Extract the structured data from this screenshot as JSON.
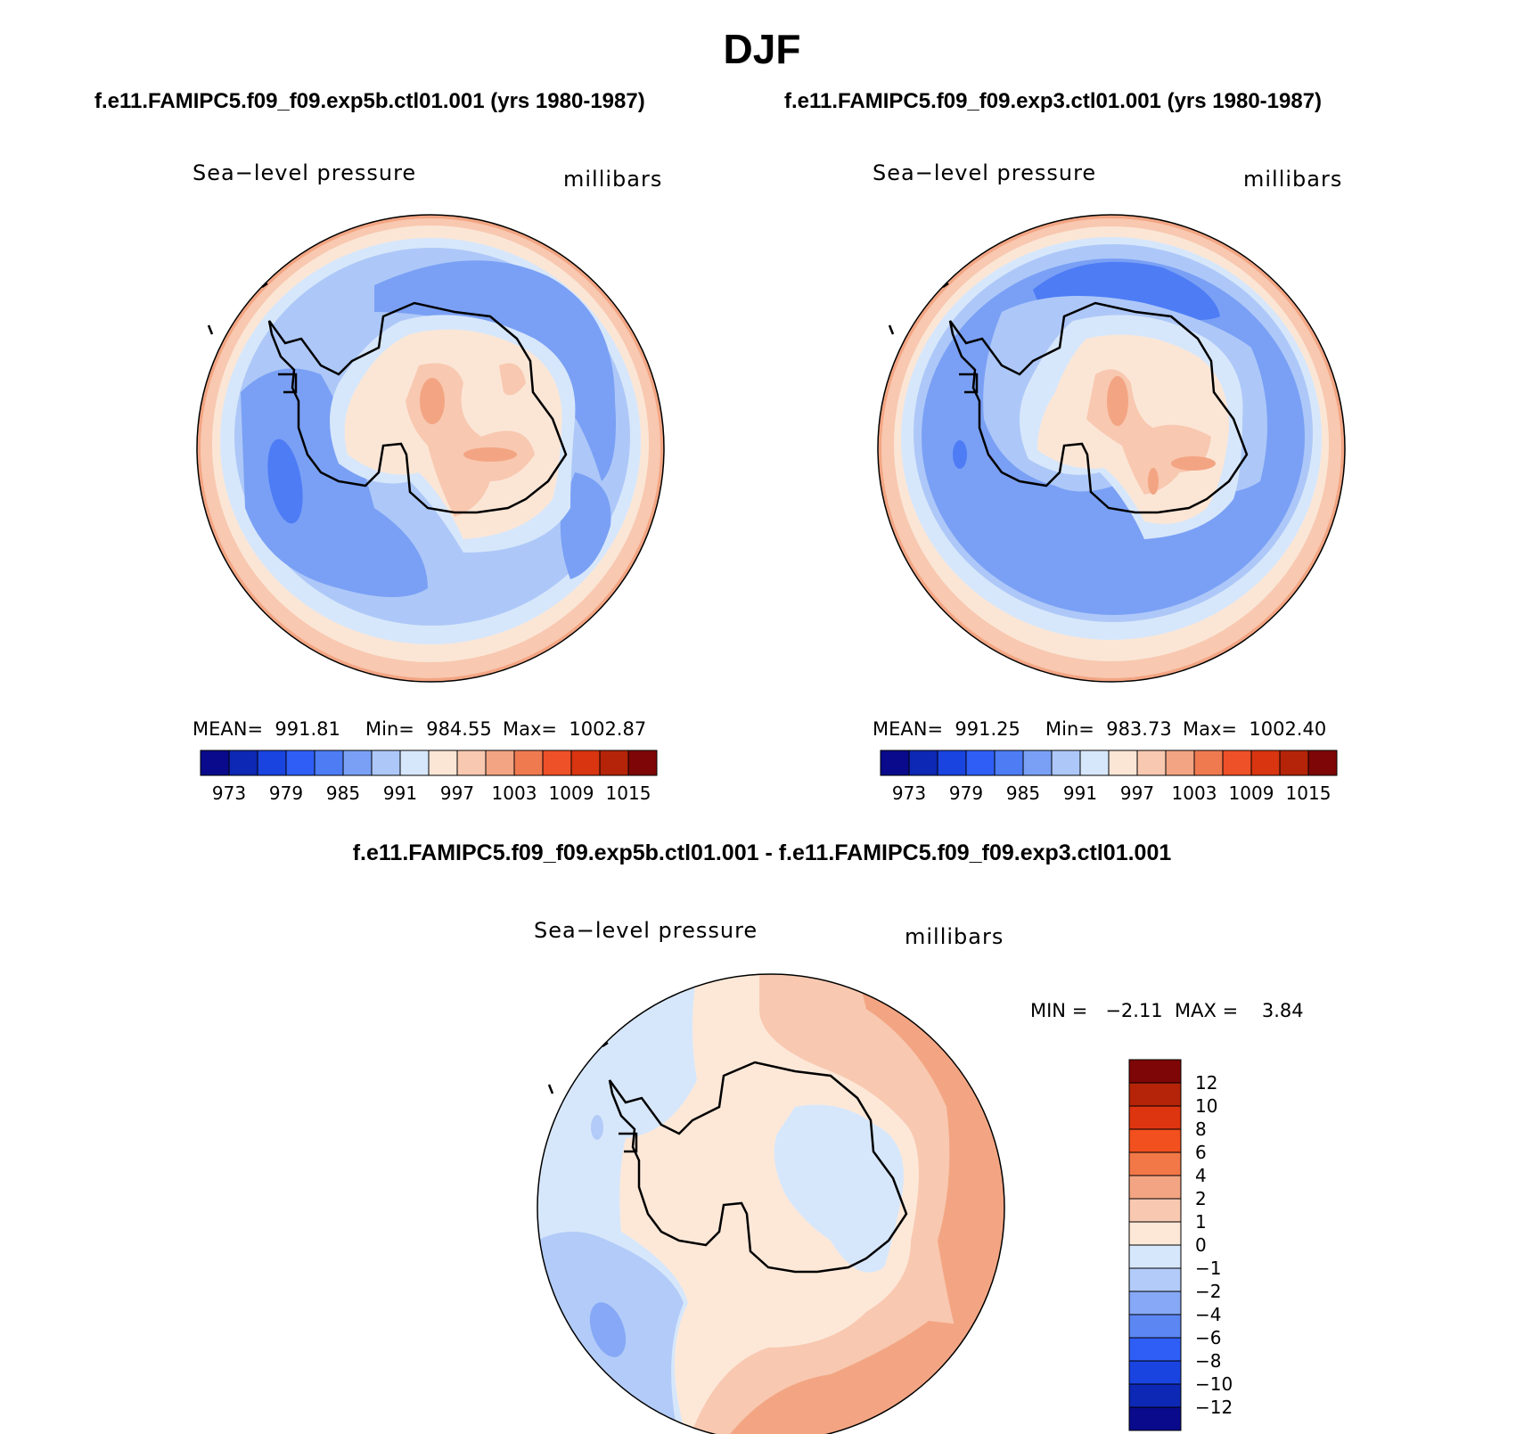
{
  "title": "DJF",
  "panels": [
    {
      "case_title": "f.e11.FAMIPC5.f09_f09.exp5b.ctl01.001 (yrs 1980-1987)",
      "field": "Sea−level pressure",
      "units": "millibars",
      "mean": "MEAN=  991.81",
      "min": "Min=  984.55",
      "max": "Max=  1002.87"
    },
    {
      "case_title": "f.e11.FAMIPC5.f09_f09.exp3.ctl01.001 (yrs 1980-1987)",
      "field": "Sea−level pressure",
      "units": "millibars",
      "mean": "MEAN=  991.25",
      "min": "Min=  983.73",
      "max": "Max=  1002.40"
    }
  ],
  "diff": {
    "title": "f.e11.FAMIPC5.f09_f09.exp5b.ctl01.001 - f.e11.FAMIPC5.f09_f09.exp3.ctl01.001",
    "field": "Sea−level pressure",
    "units": "millibars",
    "minmax": "MIN =   −2.11  MAX =    3.84"
  },
  "colorbar_abs": {
    "colors": [
      "#0a0a8c",
      "#0d28b4",
      "#1a44e0",
      "#2e5ef5",
      "#4d7cf5",
      "#7aa0f5",
      "#adc8f8",
      "#d7e7fb",
      "#fbe6d6",
      "#f8c8b0",
      "#f3a583",
      "#f07a50",
      "#ee5028",
      "#d83510",
      "#b52408",
      "#7f0606"
    ],
    "labels": [
      "973",
      "979",
      "985",
      "991",
      "997",
      "1003",
      "1009",
      "1015"
    ]
  },
  "colorbar_diff": {
    "colors": [
      "#7f0606",
      "#b52408",
      "#dd3510",
      "#f2501e",
      "#f37847",
      "#f3a583",
      "#f8c8b0",
      "#fde8d8",
      "#d7e7fb",
      "#b2cbf8",
      "#86a8f6",
      "#5c86f2",
      "#2e5ef5",
      "#1a44e0",
      "#0d28b4",
      "#0a0a8c"
    ],
    "labels": [
      "12",
      "10",
      "8",
      "6",
      "4",
      "2",
      "1",
      "0",
      "−1",
      "−2",
      "−4",
      "−6",
      "−8",
      "−10",
      "−12"
    ]
  },
  "chart_data": [
    {
      "type": "heatmap",
      "title": "f.e11.FAMIPC5.f09_f09.exp5b.ctl01.001 (yrs 1980-1987)",
      "variable": "Sea−level pressure",
      "units": "millibars",
      "projection": "polar stereographic (south pole)",
      "contour_levels": [
        973,
        976,
        979,
        982,
        985,
        988,
        991,
        994,
        997,
        1000,
        1003,
        1006,
        1009,
        1012,
        1015
      ],
      "mean": 991.81,
      "min": 984.55,
      "max": 1002.87
    },
    {
      "type": "heatmap",
      "title": "f.e11.FAMIPC5.f09_f09.exp3.ctl01.001 (yrs 1980-1987)",
      "variable": "Sea−level pressure",
      "units": "millibars",
      "projection": "polar stereographic (south pole)",
      "contour_levels": [
        973,
        976,
        979,
        982,
        985,
        988,
        991,
        994,
        997,
        1000,
        1003,
        1006,
        1009,
        1012,
        1015
      ],
      "mean": 991.25,
      "min": 983.73,
      "max": 1002.4
    },
    {
      "type": "heatmap",
      "title": "f.e11.FAMIPC5.f09_f09.exp5b.ctl01.001 - f.e11.FAMIPC5.f09_f09.exp3.ctl01.001",
      "variable": "Sea−level pressure",
      "units": "millibars",
      "projection": "polar stereographic (south pole)",
      "contour_levels": [
        -12,
        -10,
        -8,
        -6,
        -4,
        -2,
        -1,
        0,
        1,
        2,
        4,
        6,
        8,
        10,
        12
      ],
      "min": -2.11,
      "max": 3.84
    }
  ]
}
